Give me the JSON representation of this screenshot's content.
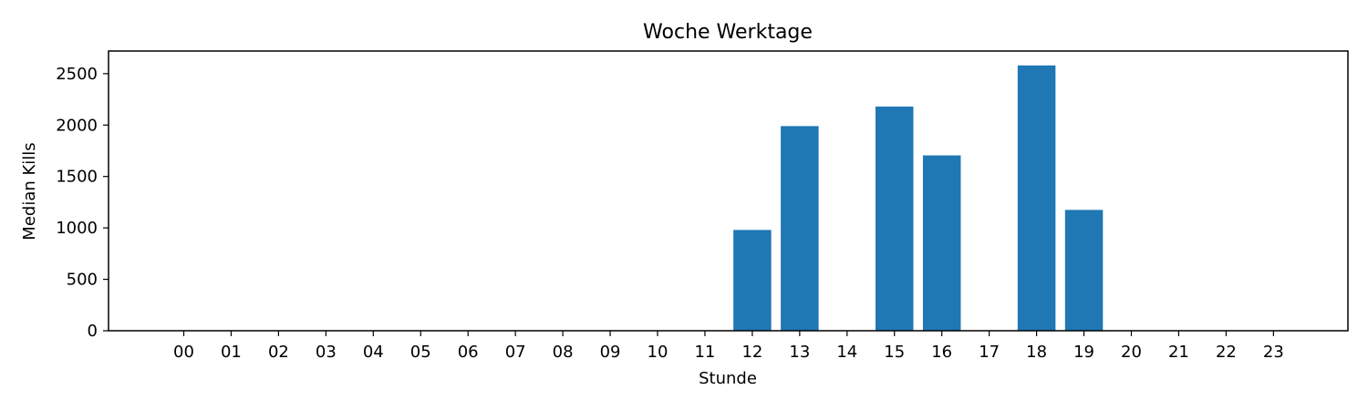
{
  "chart_data": {
    "type": "bar",
    "title": "Woche Werktage",
    "xlabel": "Stunde",
    "ylabel": "Median Kills",
    "categories": [
      "00",
      "01",
      "02",
      "03",
      "04",
      "05",
      "06",
      "07",
      "08",
      "09",
      "10",
      "11",
      "12",
      "13",
      "14",
      "15",
      "16",
      "17",
      "18",
      "19",
      "20",
      "21",
      "22",
      "23"
    ],
    "values": [
      0,
      0,
      0,
      0,
      0,
      0,
      0,
      0,
      0,
      0,
      0,
      0,
      980,
      1990,
      0,
      2180,
      1705,
      0,
      2580,
      1175,
      0,
      0,
      0,
      0
    ],
    "ylim": [
      0,
      2720
    ],
    "yticks": [
      0,
      500,
      1000,
      1500,
      2000,
      2500
    ],
    "grid": false,
    "legend": "none",
    "bar_color": "#1f77b4"
  }
}
